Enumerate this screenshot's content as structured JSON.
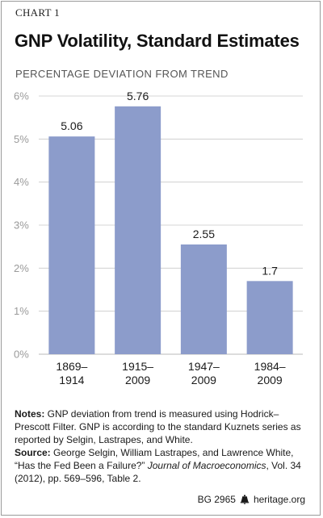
{
  "header": {
    "chart_label": "CHART 1",
    "title": "GNP Volatility, Standard Estimates",
    "subtitle": "PERCENTAGE DEVIATION FROM TREND"
  },
  "chart_data": {
    "type": "bar",
    "title": "GNP Volatility, Standard Estimates",
    "ylabel": "PERCENTAGE DEVIATION FROM TREND",
    "categories": [
      [
        "1869–",
        "1914"
      ],
      [
        "1915–",
        "2009"
      ],
      [
        "1947–",
        "2009"
      ],
      [
        "1984–",
        "2009"
      ]
    ],
    "values": [
      5.06,
      5.76,
      2.55,
      1.7
    ],
    "value_labels": [
      "5.06",
      "5.76",
      "2.55",
      "1.7"
    ],
    "ylim": [
      0,
      6
    ],
    "yticks": [
      0,
      1,
      2,
      3,
      4,
      5,
      6
    ],
    "ytick_labels": [
      "0%",
      "1%",
      "2%",
      "3%",
      "4%",
      "5%",
      "6%"
    ],
    "grid": true,
    "colors": {
      "bar": "#8c9ccb",
      "grid": "#c8c8c8",
      "tick_label": "#9a9a9a"
    }
  },
  "notes": {
    "notes_label": "Notes:",
    "notes_text": " GNP deviation from trend is measured using Hodrick–Prescott Filter. GNP is according to the standard Kuznets series as reported by Selgin, Lastrapes, and White.",
    "source_label": "Source:",
    "source_text_1": " George Selgin, William Lastrapes, and Lawrence White, “Has the Fed Been a Failure?” ",
    "source_journal": "Journal of Macroeconomics",
    "source_text_2": ", Vol. 34 (2012), pp. 569–596, Table 2."
  },
  "footer": {
    "code": "BG 2965",
    "icon": "liberty-bell-icon",
    "site": "heritage.org"
  }
}
